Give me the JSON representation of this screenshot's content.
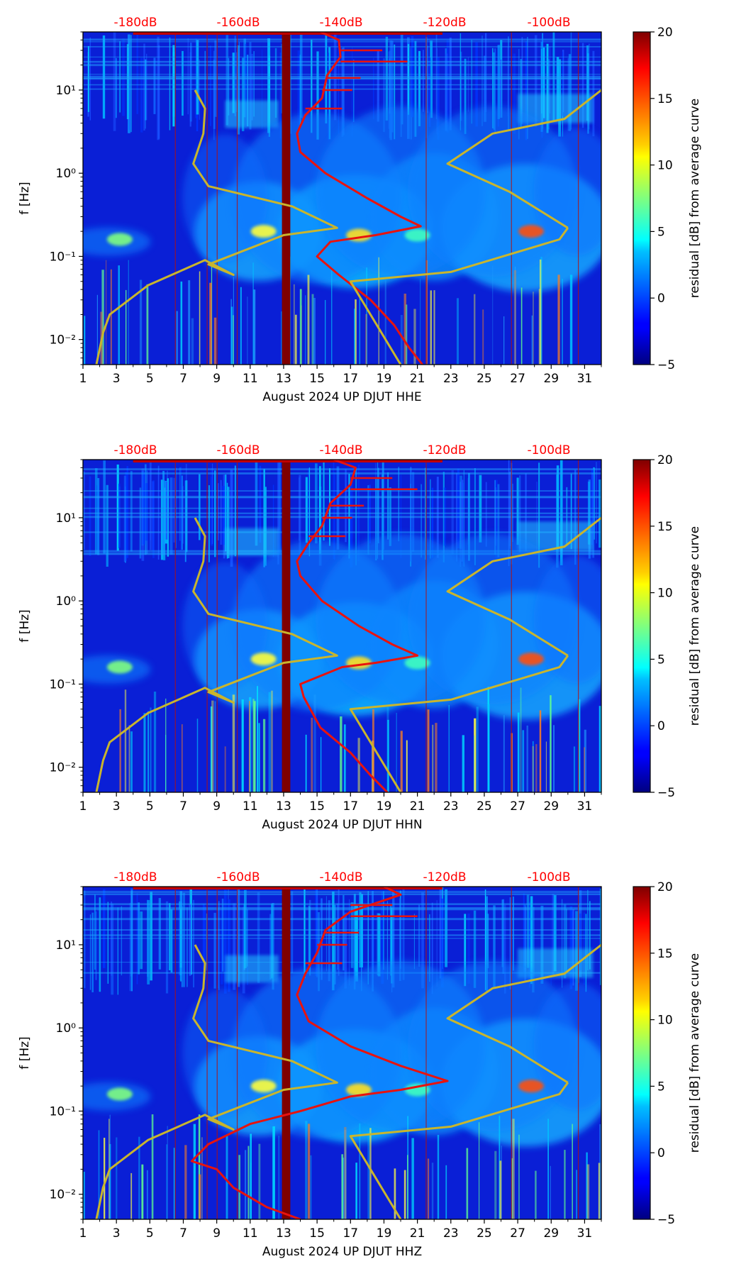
{
  "chart_data": [
    {
      "type": "heatmap",
      "title": "",
      "xlabel": "August 2024 UP DJUT  HHE",
      "ylabel": "f [Hz]",
      "colorbar_label": "residual [dB] from average curve",
      "xlim": [
        1,
        32
      ],
      "ylim": [
        0.005,
        50
      ],
      "yscale": "log",
      "clim": [
        -5,
        20
      ],
      "colormap": "jet",
      "x_ticks": [
        "1",
        "3",
        "5",
        "7",
        "9",
        "11",
        "13",
        "15",
        "17",
        "19",
        "21",
        "23",
        "25",
        "27",
        "29",
        "31"
      ],
      "y_ticks": [
        "10⁻²",
        "10⁻¹",
        "10⁰",
        "10¹"
      ],
      "colorbar_ticks": [
        "20",
        "15",
        "10",
        "5",
        "0",
        "−5"
      ],
      "top_db_labels": [
        "-180dB",
        "-160dB",
        "-140dB",
        "-120dB",
        "-100dB"
      ],
      "series": [
        {
          "name": "mean PSD curve",
          "color": "#e8130e",
          "points": [
            [
              21.3,
              0.005
            ],
            [
              20.5,
              0.008
            ],
            [
              19.6,
              0.015
            ],
            [
              18.2,
              0.03
            ],
            [
              16.3,
              0.06
            ],
            [
              15.0,
              0.1
            ],
            [
              15.8,
              0.15
            ],
            [
              18.5,
              0.18
            ],
            [
              21.2,
              0.23
            ],
            [
              20.0,
              0.3
            ],
            [
              18.0,
              0.5
            ],
            [
              15.5,
              1.0
            ],
            [
              14.0,
              1.8
            ],
            [
              13.8,
              3.0
            ],
            [
              14.3,
              5.0
            ],
            [
              15.3,
              8.0
            ],
            [
              15.6,
              15
            ],
            [
              16.4,
              25
            ],
            [
              16.3,
              40
            ],
            [
              15.2,
              50
            ]
          ]
        },
        {
          "name": "NLNM / NHNM reference",
          "color": "#c9b52d",
          "points": [
            [
              1.8,
              0.005
            ],
            [
              2.2,
              0.012
            ],
            [
              2.6,
              0.02
            ],
            [
              4.9,
              0.045
            ],
            [
              8.3,
              0.09
            ],
            [
              10.0,
              0.06
            ],
            [
              8.5,
              0.08
            ],
            [
              13.0,
              0.18
            ],
            [
              16.2,
              0.22
            ],
            [
              13.5,
              0.4
            ],
            [
              8.5,
              0.7
            ],
            [
              7.6,
              1.3
            ],
            [
              8.2,
              3.0
            ],
            [
              8.3,
              6.0
            ],
            [
              7.7,
              10
            ],
            [
              30.0,
              0.22
            ],
            [
              26.5,
              0.6
            ],
            [
              22.8,
              1.3
            ],
            [
              25.5,
              3.0
            ],
            [
              29.8,
              4.5
            ],
            [
              32.0,
              10
            ],
            [
              20.0,
              0.005
            ],
            [
              17.0,
              0.05
            ],
            [
              23.0,
              0.065
            ],
            [
              29.5,
              0.16
            ],
            [
              30.0,
              0.22
            ]
          ]
        }
      ],
      "saturated_band_x": [
        12.9,
        13.4
      ]
    },
    {
      "type": "heatmap",
      "title": "",
      "xlabel": "August 2024 UP DJUT  HHN",
      "ylabel": "f [Hz]",
      "colorbar_label": "residual [dB] from average curve",
      "xlim": [
        1,
        32
      ],
      "ylim": [
        0.005,
        50
      ],
      "yscale": "log",
      "clim": [
        -5,
        20
      ],
      "colormap": "jet",
      "x_ticks": [
        "1",
        "3",
        "5",
        "7",
        "9",
        "11",
        "13",
        "15",
        "17",
        "19",
        "21",
        "23",
        "25",
        "27",
        "29",
        "31"
      ],
      "y_ticks": [
        "10⁻²",
        "10⁻¹",
        "10⁰",
        "10¹"
      ],
      "colorbar_ticks": [
        "20",
        "15",
        "10",
        "5",
        "0",
        "−5"
      ],
      "top_db_labels": [
        "-180dB",
        "-160dB",
        "-140dB",
        "-120dB",
        "-100dB"
      ],
      "series": [
        {
          "name": "mean PSD curve",
          "color": "#e8130e",
          "points": [
            [
              19.2,
              0.005
            ],
            [
              18.2,
              0.008
            ],
            [
              17.0,
              0.015
            ],
            [
              15.2,
              0.03
            ],
            [
              14.2,
              0.07
            ],
            [
              14.0,
              0.1
            ],
            [
              16.5,
              0.16
            ],
            [
              18.5,
              0.18
            ],
            [
              21.0,
              0.22
            ],
            [
              19.5,
              0.3
            ],
            [
              17.5,
              0.5
            ],
            [
              15.3,
              1.0
            ],
            [
              14.0,
              2.0
            ],
            [
              13.8,
              3.0
            ],
            [
              14.5,
              5.0
            ],
            [
              15.3,
              8.0
            ],
            [
              15.8,
              15
            ],
            [
              17.0,
              25
            ],
            [
              17.3,
              40
            ],
            [
              16.0,
              50
            ]
          ]
        },
        {
          "name": "NLNM / NHNM reference",
          "color": "#c9b52d",
          "points": [
            [
              1.8,
              0.005
            ],
            [
              2.2,
              0.012
            ],
            [
              2.6,
              0.02
            ],
            [
              4.9,
              0.045
            ],
            [
              8.3,
              0.09
            ],
            [
              10.0,
              0.06
            ],
            [
              8.5,
              0.08
            ],
            [
              13.0,
              0.18
            ],
            [
              16.2,
              0.22
            ],
            [
              13.5,
              0.4
            ],
            [
              8.5,
              0.7
            ],
            [
              7.6,
              1.3
            ],
            [
              8.2,
              3.0
            ],
            [
              8.3,
              6.0
            ],
            [
              7.7,
              10
            ],
            [
              30.0,
              0.22
            ],
            [
              26.5,
              0.6
            ],
            [
              22.8,
              1.3
            ],
            [
              25.5,
              3.0
            ],
            [
              29.8,
              4.5
            ],
            [
              32.0,
              10
            ],
            [
              20.0,
              0.005
            ],
            [
              17.0,
              0.05
            ],
            [
              23.0,
              0.065
            ],
            [
              29.5,
              0.16
            ],
            [
              30.0,
              0.22
            ]
          ]
        }
      ],
      "saturated_band_x": [
        12.9,
        13.4
      ]
    },
    {
      "type": "heatmap",
      "title": "",
      "xlabel": "August 2024 UP DJUT  HHZ",
      "ylabel": "f [Hz]",
      "colorbar_label": "residual [dB] from average curve",
      "xlim": [
        1,
        32
      ],
      "ylim": [
        0.005,
        50
      ],
      "yscale": "log",
      "clim": [
        -5,
        20
      ],
      "colormap": "jet",
      "x_ticks": [
        "1",
        "3",
        "5",
        "7",
        "9",
        "11",
        "13",
        "15",
        "17",
        "19",
        "21",
        "23",
        "25",
        "27",
        "29",
        "31"
      ],
      "y_ticks": [
        "10⁻²",
        "10⁻¹",
        "10⁰",
        "10¹"
      ],
      "colorbar_ticks": [
        "20",
        "15",
        "10",
        "5",
        "0",
        "−5"
      ],
      "top_db_labels": [
        "-180dB",
        "-160dB",
        "-140dB",
        "-120dB",
        "-100dB"
      ],
      "series": [
        {
          "name": "mean PSD curve",
          "color": "#e8130e",
          "points": [
            [
              14.0,
              0.005
            ],
            [
              12.0,
              0.007
            ],
            [
              10.0,
              0.012
            ],
            [
              9.0,
              0.02
            ],
            [
              7.5,
              0.025
            ],
            [
              8.5,
              0.04
            ],
            [
              11.0,
              0.07
            ],
            [
              14.0,
              0.1
            ],
            [
              17.0,
              0.15
            ],
            [
              20.0,
              0.18
            ],
            [
              22.8,
              0.23
            ],
            [
              20.0,
              0.35
            ],
            [
              17.0,
              0.6
            ],
            [
              14.5,
              1.2
            ],
            [
              13.8,
              2.5
            ],
            [
              14.3,
              4.5
            ],
            [
              15.0,
              8.0
            ],
            [
              15.5,
              15
            ],
            [
              17.0,
              25
            ],
            [
              20.0,
              40
            ],
            [
              19.0,
              50
            ]
          ]
        },
        {
          "name": "NLNM / NHNM reference",
          "color": "#c9b52d",
          "points": [
            [
              1.8,
              0.005
            ],
            [
              2.2,
              0.012
            ],
            [
              2.6,
              0.02
            ],
            [
              4.9,
              0.045
            ],
            [
              8.3,
              0.09
            ],
            [
              10.0,
              0.06
            ],
            [
              8.5,
              0.08
            ],
            [
              13.0,
              0.18
            ],
            [
              16.2,
              0.22
            ],
            [
              13.5,
              0.4
            ],
            [
              8.5,
              0.7
            ],
            [
              7.6,
              1.3
            ],
            [
              8.2,
              3.0
            ],
            [
              8.3,
              6.0
            ],
            [
              7.7,
              10
            ],
            [
              30.0,
              0.22
            ],
            [
              26.5,
              0.6
            ],
            [
              22.8,
              1.3
            ],
            [
              25.5,
              3.0
            ],
            [
              29.8,
              4.5
            ],
            [
              32.0,
              10
            ],
            [
              20.0,
              0.005
            ],
            [
              17.0,
              0.05
            ],
            [
              23.0,
              0.065
            ],
            [
              29.5,
              0.16
            ],
            [
              30.0,
              0.22
            ]
          ]
        }
      ],
      "saturated_band_x": [
        12.9,
        13.4
      ]
    }
  ]
}
